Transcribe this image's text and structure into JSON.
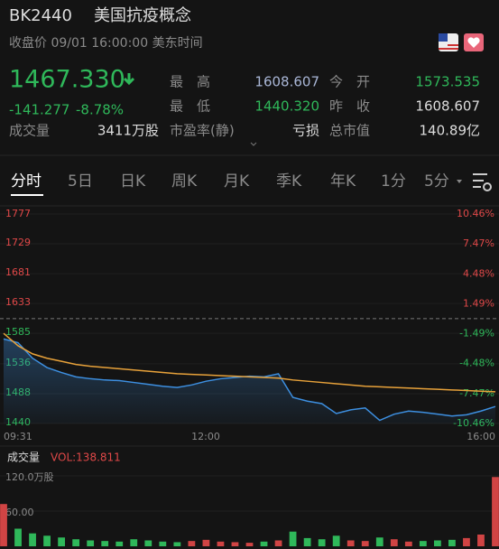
{
  "header": {
    "code": "BK2440",
    "name": "美国抗疫概念",
    "status": "收盘价 09/01 16:00:00 美东时间"
  },
  "quote": {
    "price": "1467.330",
    "change": "-141.277",
    "change_pct": "-8.78%",
    "volume_label": "成交量",
    "volume": "3411万股",
    "stats": [
      {
        "label": "最　高",
        "value": "1608.607"
      },
      {
        "label": "今　开",
        "value": "1573.535"
      },
      {
        "label": "最　低",
        "value": "1440.320"
      },
      {
        "label": "昨　收",
        "value": "1608.607"
      },
      {
        "label": "市盈率(静)",
        "value": "亏损"
      },
      {
        "label": "总市值",
        "value": "140.89亿"
      }
    ]
  },
  "tabs": [
    "分时",
    "5日",
    "日K",
    "周K",
    "月K",
    "季K",
    "年K",
    "1分",
    "5分"
  ],
  "chart_data": {
    "type": "line",
    "xticks": [
      "09:31",
      "12:00",
      "16:00"
    ],
    "ylim": [
      1440,
      1777
    ],
    "yticks": [
      1777,
      1729,
      1681,
      1633,
      1585,
      1536,
      1488,
      1440
    ],
    "y2lim": [
      -10.46,
      10.46
    ],
    "y2ticks": [
      {
        "value": 10.46,
        "label": "10.46%"
      },
      {
        "value": 7.47,
        "label": "7.47%"
      },
      {
        "value": 4.48,
        "label": "4.48%"
      },
      {
        "value": 1.49,
        "label": "1.49%"
      },
      {
        "value": -1.49,
        "label": "-1.49%"
      },
      {
        "value": -4.48,
        "label": "-4.48%"
      },
      {
        "value": -7.47,
        "label": "-7.47%"
      },
      {
        "value": -10.46,
        "label": "-10.46%"
      }
    ],
    "prev_close": 1608.607,
    "series": [
      {
        "color": "#3d8fe0",
        "values": [
          1576,
          1570,
          1545,
          1530,
          1522,
          1515,
          1512,
          1510,
          1509,
          1506,
          1503,
          1500,
          1498,
          1502,
          1508,
          1512,
          1514,
          1516,
          1515,
          1520,
          1482,
          1476,
          1472,
          1456,
          1462,
          1465,
          1445,
          1455,
          1460,
          1458,
          1455,
          1452,
          1454,
          1460,
          1467.33
        ]
      },
      {
        "color": "#e8a23a",
        "values": [
          1585,
          1565,
          1552,
          1545,
          1540,
          1535,
          1532,
          1530,
          1528,
          1526,
          1524,
          1522,
          1520,
          1519,
          1518,
          1517,
          1516,
          1515,
          1514,
          1513,
          1510,
          1508,
          1506,
          1504,
          1502,
          1500,
          1499,
          1498,
          1497,
          1496,
          1495,
          1494,
          1493,
          1492,
          1491
        ]
      }
    ],
    "volume": {
      "title": "成交量",
      "indicator": "VOL:138.811",
      "ylim": [
        0,
        120
      ],
      "yticks": [
        {
          "value": 120,
          "label": "120.0万股"
        },
        {
          "value": 60,
          "label": "60.00"
        }
      ],
      "values": [
        72,
        30,
        22,
        18,
        15,
        12,
        10,
        9,
        8,
        12,
        10,
        8,
        7,
        9,
        11,
        8,
        7,
        6,
        8,
        10,
        25,
        14,
        12,
        18,
        10,
        9,
        15,
        12,
        8,
        9,
        10,
        11,
        14,
        20,
        118
      ]
    }
  }
}
